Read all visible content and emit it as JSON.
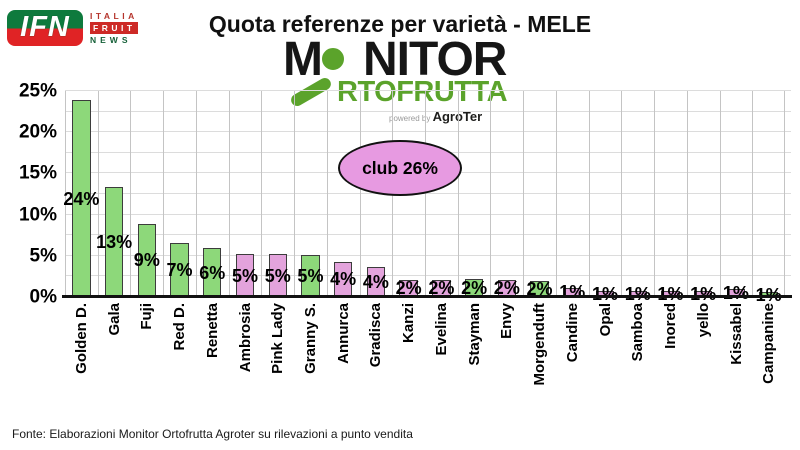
{
  "title": "Quota referenze per varietà - MELE",
  "header_logo": {
    "acronym": "IFN",
    "line1": "ITALIA",
    "line2": "FRUIT",
    "line3": "NEWS"
  },
  "monitor_logo": {
    "word_top_left": "M",
    "word_top_right": "NITOR",
    "word_bottom": "RTOFRUTTA",
    "powered_by": "powered by ",
    "brand": "AgroTer"
  },
  "annotation": {
    "label": "club 26%"
  },
  "footer": {
    "source": "Fonte: Elaborazioni Monitor Ortofrutta Agroter su rilevazioni a punto vendita"
  },
  "colors": {
    "green_bar": "#8dd87a",
    "pink_bar": "#e3a3dc",
    "bar_border": "#3c3c3c",
    "ellipse_fill": "#e79ae1",
    "monitor_green": "#5ba32b",
    "ifn_green": "#0e7a3d",
    "ifn_red": "#e02325"
  },
  "chart_data": {
    "type": "bar",
    "title": "Quota referenze per varietà - MELE",
    "categories": [
      "Golden D.",
      "Gala",
      "Fuji",
      "Red D.",
      "Renetta",
      "Ambrosia",
      "Pink Lady",
      "Granny S.",
      "Annurca",
      "Gradisca",
      "Kanzi",
      "Evelina",
      "Stayman",
      "Envy",
      "Morgenduft",
      "Candine",
      "Opal",
      "Samboa",
      "Inored",
      "yello",
      "Kissabel",
      "Campanine"
    ],
    "values": [
      23.9,
      13.4,
      8.9,
      6.6,
      5.9,
      5.2,
      5.2,
      5.1,
      4.3,
      3.6,
      2.1,
      2.1,
      2.2,
      2.1,
      2.0,
      1.1,
      0.7,
      0.7,
      0.7,
      0.7,
      1.0,
      0.6
    ],
    "labels": [
      "24%",
      "13%",
      "9%",
      "7%",
      "6%",
      "5%",
      "5%",
      "5%",
      "4%",
      "4%",
      "2%",
      "2%",
      "2%",
      "2%",
      "2%",
      "1%",
      "1%",
      "1%",
      "1%",
      "1%",
      "1%",
      "1%"
    ],
    "color_keys": [
      "green",
      "green",
      "green",
      "green",
      "green",
      "pink",
      "pink",
      "green",
      "pink",
      "pink",
      "pink",
      "pink",
      "green",
      "pink",
      "green",
      "pink",
      "pink",
      "pink",
      "pink",
      "pink",
      "pink",
      "green"
    ],
    "xlabel": "",
    "ylabel": "",
    "ylim": [
      0,
      25
    ],
    "y_ticks": [
      "0%",
      "5%",
      "10%",
      "15%",
      "20%",
      "25%"
    ],
    "y_tick_step": 5,
    "grid_step": 2.5,
    "grid": "horizontal every 2.5%, vertical per category",
    "legend": "none",
    "annotation": "club 26%"
  }
}
